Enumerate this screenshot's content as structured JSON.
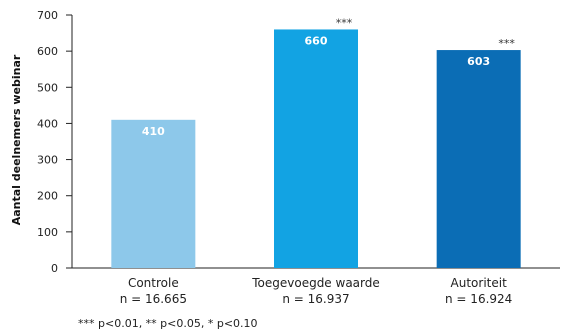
{
  "chart_data": {
    "type": "bar",
    "ylabel": "Aantal deelnemers webinar",
    "ylim": [
      0,
      700
    ],
    "yticks": [
      0,
      100,
      200,
      300,
      400,
      500,
      600,
      700
    ],
    "grid": false,
    "categories": [
      {
        "name": "Controle",
        "n_label": "n = 16.665",
        "value": 410,
        "label": "410",
        "significance": "",
        "color": "#8dc8ea"
      },
      {
        "name": "Toegevoegde waarde",
        "n_label": "n = 16.937",
        "value": 660,
        "label": "660",
        "significance": "***",
        "color": "#12a3e3"
      },
      {
        "name": "Autoriteit",
        "n_label": "n = 16.924",
        "value": 603,
        "label": "603",
        "significance": "***",
        "color": "#0b6db5"
      }
    ],
    "footnote": "*** p<0.01, ** p<0.05, * p<0.10"
  }
}
